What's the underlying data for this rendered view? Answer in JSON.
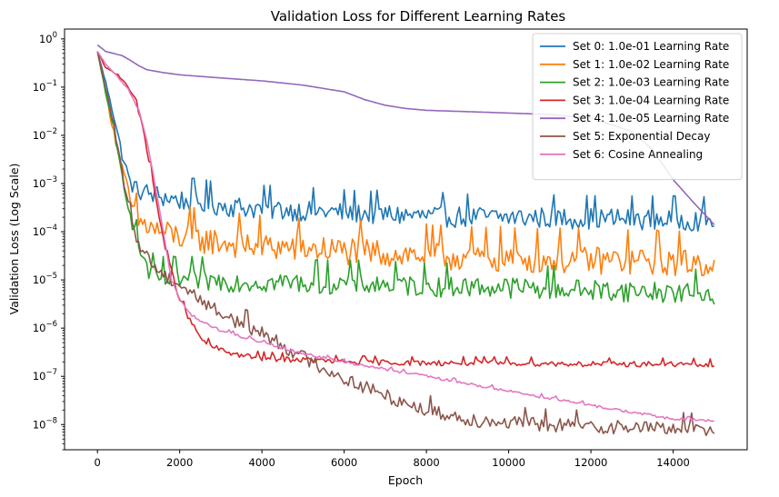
{
  "chart_data": {
    "type": "line",
    "title": "Validation Loss for Different Learning Rates",
    "xlabel": "Epoch",
    "ylabel": "Validation Loss (Log Scale)",
    "yscale": "log",
    "xlim": [
      -800,
      15800
    ],
    "ylim": [
      3e-09,
      1.6
    ],
    "x_ticks": [
      0,
      2000,
      4000,
      6000,
      8000,
      10000,
      12000,
      14000
    ],
    "x_tick_labels": [
      "0",
      "2000",
      "4000",
      "6000",
      "8000",
      "10000",
      "12000",
      "14000"
    ],
    "y_ticks": [
      1e-08,
      1e-07,
      1e-06,
      1e-05,
      0.0001,
      0.001,
      0.01,
      0.1,
      1
    ],
    "y_tick_labels": [
      {
        "base": "10",
        "exp": "−8"
      },
      {
        "base": "10",
        "exp": "−7"
      },
      {
        "base": "10",
        "exp": "−6"
      },
      {
        "base": "10",
        "exp": "−5"
      },
      {
        "base": "10",
        "exp": "−4"
      },
      {
        "base": "10",
        "exp": "−3"
      },
      {
        "base": "10",
        "exp": "−2"
      },
      {
        "base": "10",
        "exp": "−1"
      },
      {
        "base": "10",
        "exp": "0"
      }
    ],
    "grid": false,
    "legend_position": "top-right",
    "series": [
      {
        "name": "Set 0: 1.0e-01 Learning Rate",
        "color": "#1f77b4",
        "noise": 0.45,
        "x": [
          0,
          300,
          600,
          800,
          1000,
          1500,
          2000,
          3000,
          4000,
          6000,
          8000,
          10000,
          12000,
          14000,
          15000
        ],
        "y": [
          0.55,
          0.06,
          0.004,
          0.001,
          0.0007,
          0.00055,
          0.00045,
          0.00035,
          0.0003,
          0.00025,
          0.00021,
          0.0002,
          0.00019,
          0.00018,
          0.00017
        ]
      },
      {
        "name": "Set 1: 1.0e-02 Learning Rate",
        "color": "#ff7f0e",
        "noise": 0.6,
        "x": [
          0,
          300,
          600,
          800,
          1000,
          1500,
          2000,
          3000,
          4000,
          6000,
          8000,
          10000,
          12000,
          14000,
          15000
        ],
        "y": [
          0.55,
          0.03,
          0.002,
          0.0004,
          0.00016,
          0.0001,
          8e-05,
          6e-05,
          5e-05,
          4e-05,
          3.2e-05,
          2.8e-05,
          2.6e-05,
          2.4e-05,
          2.2e-05
        ]
      },
      {
        "name": "Set 2: 1.0e-03 Learning Rate",
        "color": "#2ca02c",
        "noise": 0.45,
        "x": [
          0,
          300,
          600,
          900,
          1100,
          1300,
          1600,
          2000,
          3000,
          4000,
          6000,
          8000,
          10000,
          12000,
          14000,
          15000
        ],
        "y": [
          0.55,
          0.03,
          0.0015,
          0.0001,
          3e-05,
          1.2e-05,
          1e-05,
          1e-05,
          9.5e-06,
          9e-06,
          8.5e-06,
          7.5e-06,
          7e-06,
          6.2e-06,
          5.5e-06,
          5.2e-06
        ]
      },
      {
        "name": "Set 3: 1.0e-04 Learning Rate",
        "color": "#d62728",
        "noise": 0.12,
        "x": [
          0,
          200,
          500,
          700,
          900,
          1100,
          1300,
          1500,
          1700,
          2000,
          2300,
          2600,
          3000,
          3500,
          4000,
          5000,
          6000,
          8000,
          10000,
          12000,
          14000,
          15000
        ],
        "y": [
          0.55,
          0.25,
          0.18,
          0.12,
          0.06,
          0.015,
          0.002,
          0.0002,
          3e-05,
          4e-06,
          1.2e-06,
          5e-07,
          3.5e-07,
          2.7e-07,
          2.4e-07,
          2.2e-07,
          2e-07,
          1.9e-07,
          1.9e-07,
          1.8e-07,
          1.8e-07,
          1.7e-07
        ]
      },
      {
        "name": "Set 4: 1.0e-05 Learning Rate",
        "color": "#9467bd",
        "noise": 0,
        "x": [
          0,
          200,
          600,
          800,
          1000,
          1200,
          1600,
          2000,
          3000,
          4000,
          5000,
          6000,
          6500,
          7000,
          7500,
          8000,
          9000,
          10000,
          11000,
          12000,
          13000,
          13500,
          14000,
          14500,
          15000
        ],
        "y": [
          0.75,
          0.55,
          0.45,
          0.36,
          0.28,
          0.23,
          0.2,
          0.18,
          0.155,
          0.135,
          0.11,
          0.08,
          0.055,
          0.042,
          0.036,
          0.033,
          0.031,
          0.029,
          0.027,
          0.023,
          0.012,
          0.005,
          0.0012,
          0.0004,
          0.00014
        ]
      },
      {
        "name": "Set 5: Exponential Decay",
        "color": "#8c564b",
        "noise": 0.3,
        "x": [
          0,
          300,
          500,
          700,
          900,
          1100,
          1300,
          1500,
          2000,
          2500,
          3000,
          4000,
          5000,
          6000,
          7000,
          8000,
          9000,
          10000,
          11000,
          12000,
          13000,
          14000,
          15000
        ],
        "y": [
          0.55,
          0.04,
          0.005,
          0.0006,
          0.0001,
          4e-05,
          2.5e-05,
          1.5e-05,
          8e-06,
          4e-06,
          2e-06,
          8e-07,
          2.5e-07,
          9e-08,
          4e-08,
          2e-08,
          1.3e-08,
          1.1e-08,
          1e-08,
          9.2e-09,
          8.8e-09,
          8.5e-09,
          8.3e-09
        ]
      },
      {
        "name": "Set 6: Cosine Annealing",
        "color": "#e377c2",
        "noise": 0.06,
        "x": [
          0,
          200,
          400,
          700,
          1000,
          1200,
          1400,
          1600,
          1800,
          2000,
          2200,
          2500,
          3000,
          4000,
          5000,
          6000,
          8000,
          10000,
          12000,
          13000,
          14000,
          15000
        ],
        "y": [
          0.55,
          0.3,
          0.2,
          0.1,
          0.035,
          0.008,
          0.001,
          0.0001,
          1e-05,
          4e-06,
          2.2e-06,
          1.4e-06,
          9e-07,
          5e-07,
          3e-07,
          2e-07,
          1e-07,
          5e-08,
          2.5e-08,
          1.8e-08,
          1.3e-08,
          1.2e-08
        ]
      }
    ]
  }
}
